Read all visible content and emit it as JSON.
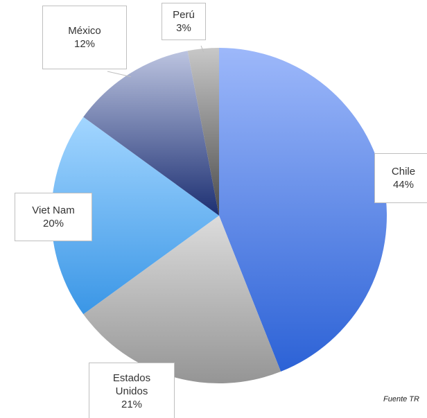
{
  "chart_data": {
    "type": "pie",
    "categories": [
      "Chile",
      "Estados Unidos",
      "Viet Nam",
      "México",
      "Perú"
    ],
    "values": [
      44,
      21,
      20,
      12,
      3
    ],
    "value_labels": [
      "44%",
      "21%",
      "20%",
      "12%",
      "3%"
    ],
    "colors": [
      [
        "#9db8fa",
        "#2c62d6"
      ],
      [
        "#dcdcdc",
        "#959595"
      ],
      [
        "#a3d6ff",
        "#3a96e6"
      ],
      [
        "#bcc4e0",
        "#1c2f72"
      ],
      [
        "#c8c8c8",
        "#4a4a4a"
      ]
    ],
    "source": "Fuente TR"
  }
}
